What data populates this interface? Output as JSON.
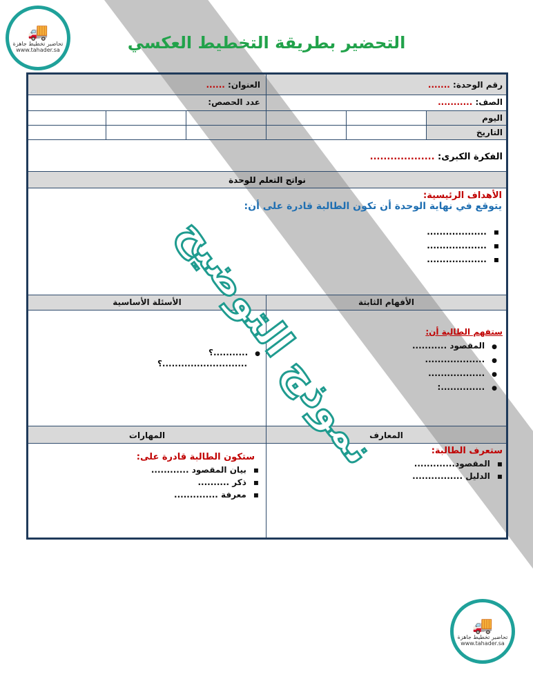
{
  "title": "التحضير بطريقة التخطيط العكسي",
  "logo": {
    "tagline": "تحاضير تخطيط جاهزة",
    "url": "www.tahader.sa"
  },
  "watermark": "نموذج التوضيح",
  "header": {
    "unit_number_label": "رقم الوحدة:",
    "unit_number_value": ".......",
    "title_label": "العنوان:",
    "title_value": "......",
    "grade_label": "الصف:",
    "grade_value": "...........",
    "periods_label": "عدد الحصص:",
    "day_label": "اليوم",
    "date_label": "التاريخ"
  },
  "big_idea": {
    "label": "الفكرة الكبرى:",
    "value": "..................."
  },
  "outcomes_header": "نواتج التعلم للوحدة",
  "main_goals": {
    "heading": "الأهداف الرئيسية:",
    "intro": "يتوقع في نهاية الوحدة أن تكون الطالبة قادرة على أن:",
    "items": [
      "...................",
      "...................",
      "..................."
    ]
  },
  "understandings": {
    "header": "الأفهام الثابتة",
    "heading": "ستفهم الطالبة أن:",
    "items": [
      "المقصود ...........",
      "...................",
      "..................",
      "..............:"
    ]
  },
  "essential_questions": {
    "header": "الأسئلة الأساسية",
    "items": [
      "...........؟",
      "...........................؟"
    ]
  },
  "knowledge": {
    "header": "المعارف",
    "heading": "ستعرف الطالبة:",
    "items": [
      "المقصود.............",
      "الدليل ................"
    ]
  },
  "skills": {
    "header": "المهارات",
    "heading": "ستكون الطالبة قادرة على:",
    "items": [
      "بيان المقصود ............",
      "ذكر ..........",
      "معرفة .............."
    ]
  }
}
